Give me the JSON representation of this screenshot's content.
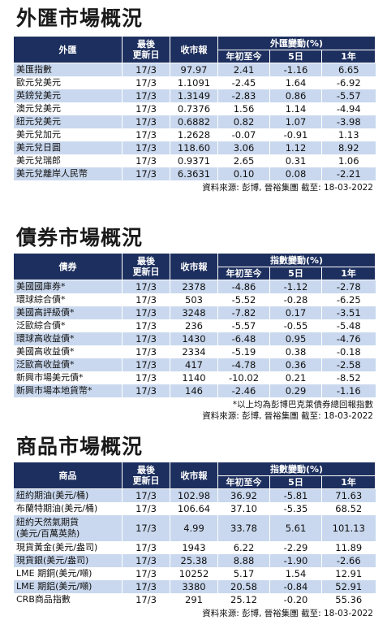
{
  "fx": {
    "title": "外匯市場概況",
    "headers": {
      "name": "外匯",
      "date": "最後\n更新日",
      "close": "收市報",
      "change_group": "外匯變動(%)",
      "ytd": "年初至今",
      "d5": "5日",
      "y1": "1年"
    },
    "rows": [
      {
        "name": "美匯指數",
        "date": "17/3",
        "close": "97.97",
        "ytd": "2.41",
        "d5": "-1.16",
        "y1": "6.65"
      },
      {
        "name": "歐元兌美元",
        "date": "17/3",
        "close": "1.1091",
        "ytd": "-2.45",
        "d5": "1.64",
        "y1": "-6.92"
      },
      {
        "name": "英鎊兌美元",
        "date": "17/3",
        "close": "1.3149",
        "ytd": "-2.83",
        "d5": "0.86",
        "y1": "-5.57"
      },
      {
        "name": "澳元兌美元",
        "date": "17/3",
        "close": "0.7376",
        "ytd": "1.56",
        "d5": "1.14",
        "y1": "-4.94"
      },
      {
        "name": "紐元兌美元",
        "date": "17/3",
        "close": "0.6882",
        "ytd": "0.82",
        "d5": "1.07",
        "y1": "-3.98"
      },
      {
        "name": "美元兌加元",
        "date": "17/3",
        "close": "1.2628",
        "ytd": "-0.07",
        "d5": "-0.91",
        "y1": "1.13"
      },
      {
        "name": "美元兌日圓",
        "date": "17/3",
        "close": "118.60",
        "ytd": "3.06",
        "d5": "1.12",
        "y1": "8.92"
      },
      {
        "name": "美元兌瑞郎",
        "date": "17/3",
        "close": "0.9371",
        "ytd": "2.65",
        "d5": "0.31",
        "y1": "1.06"
      },
      {
        "name": "美元兌離岸人民幣",
        "date": "17/3",
        "close": "6.3631",
        "ytd": "0.10",
        "d5": "0.08",
        "y1": "-2.21"
      }
    ],
    "source": "資料來源: 彭博, 晉裕集團 截至: 18-03-2022"
  },
  "bond": {
    "title": "債券市場概況",
    "headers": {
      "name": "債券",
      "date": "最後\n更新日",
      "close": "收市報",
      "change_group": "指數變動(%)",
      "ytd": "年初至今",
      "d5": "5日",
      "y1": "1年"
    },
    "rows": [
      {
        "name": "美國國庫券*",
        "date": "17/3",
        "close": "2378",
        "ytd": "-4.86",
        "d5": "-1.12",
        "y1": "-2.78"
      },
      {
        "name": "環球綜合債*",
        "date": "17/3",
        "close": "503",
        "ytd": "-5.52",
        "d5": "-0.28",
        "y1": "-6.25"
      },
      {
        "name": "美國高評級債*",
        "date": "17/3",
        "close": "3248",
        "ytd": "-7.82",
        "d5": "0.17",
        "y1": "-3.51"
      },
      {
        "name": "泛歐綜合債*",
        "date": "17/3",
        "close": "236",
        "ytd": "-5.57",
        "d5": "-0.55",
        "y1": "-5.48"
      },
      {
        "name": "環球高收益債*",
        "date": "17/3",
        "close": "1430",
        "ytd": "-6.48",
        "d5": "0.95",
        "y1": "-4.76"
      },
      {
        "name": "美國高收益債*",
        "date": "17/3",
        "close": "2334",
        "ytd": "-5.19",
        "d5": "0.38",
        "y1": "-0.18"
      },
      {
        "name": "泛歐高收益債*",
        "date": "17/3",
        "close": "417",
        "ytd": "-4.78",
        "d5": "0.36",
        "y1": "-2.58"
      },
      {
        "name": "新興市場美元債*",
        "date": "17/3",
        "close": "1140",
        "ytd": "-10.02",
        "d5": "0.21",
        "y1": "-8.52"
      },
      {
        "name": "新興市場本地貨幣*",
        "date": "17/3",
        "close": "146",
        "ytd": "-2.46",
        "d5": "0.29",
        "y1": "-1.16"
      }
    ],
    "note": "*以上均為彭博巴克萊債券總回報指數",
    "source": "資料來源: 彭博, 晉裕集團 截至: 18-03-2022"
  },
  "commodity": {
    "title": "商品市場概況",
    "headers": {
      "name": "商品",
      "date": "最後\n更新日",
      "close": "收市報",
      "change_group": "指數變動(%)",
      "ytd": "年初至今",
      "d5": "5日",
      "y1": "1年"
    },
    "rows": [
      {
        "name": "紐約期油(美元/桶)",
        "date": "17/3",
        "close": "102.98",
        "ytd": "36.92",
        "d5": "-5.81",
        "y1": "71.63"
      },
      {
        "name": "布蘭特期油(美元/桶)",
        "date": "17/3",
        "close": "106.64",
        "ytd": "37.10",
        "d5": "-5.35",
        "y1": "68.52"
      },
      {
        "name": "紐約天然氣期貨\n(美元/百萬英熱)",
        "date": "17/3",
        "close": "4.99",
        "ytd": "33.78",
        "d5": "5.61",
        "y1": "101.13",
        "tall": true
      },
      {
        "name": "現貨黃金(美元/盎司)",
        "date": "17/3",
        "close": "1943",
        "ytd": "6.22",
        "d5": "-2.29",
        "y1": "11.89"
      },
      {
        "name": "現貨銀(美元/盎司)",
        "date": "17/3",
        "close": "25.38",
        "ytd": "8.88",
        "d5": "-1.90",
        "y1": "-2.66"
      },
      {
        "name": "LME 期銅(美元/噸)",
        "date": "17/3",
        "close": "10252",
        "ytd": "5.17",
        "d5": "1.54",
        "y1": "12.91"
      },
      {
        "name": "LME 期鋁(美元/噸)",
        "date": "17/3",
        "close": "3380",
        "ytd": "20.58",
        "d5": "-0.84",
        "y1": "52.91"
      },
      {
        "name": "CRB商品指數",
        "date": "17/3",
        "close": "291",
        "ytd": "25.12",
        "d5": "-0.20",
        "y1": "55.36"
      }
    ],
    "source": "資料來源: 彭博, 晉裕集團 截至: 18-03-2022"
  }
}
